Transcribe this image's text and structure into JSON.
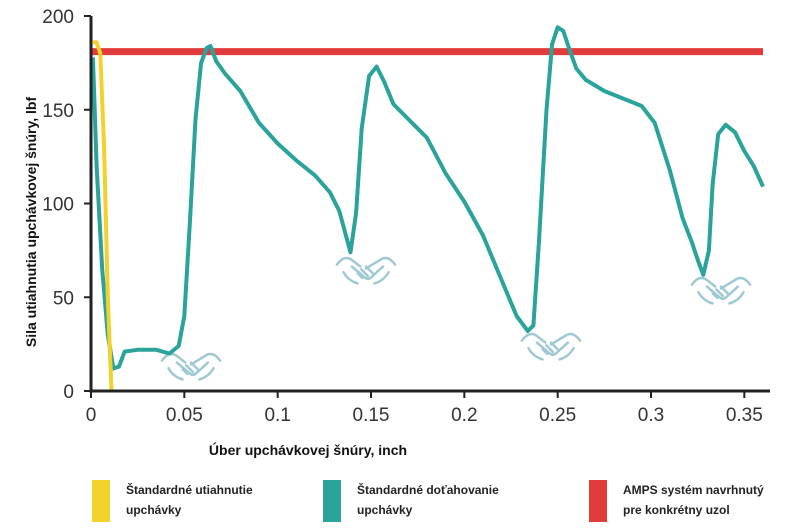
{
  "chart_data": {
    "type": "line",
    "title": "",
    "xlabel": "Úber upchávkovej šnúry, inch",
    "ylabel": "Sila utiahnutia upchávkovej šnúry, lbf",
    "xlim": [
      0,
      0.36
    ],
    "ylim": [
      0,
      200
    ],
    "x_ticks": [
      0,
      0.05,
      0.1,
      0.15,
      0.2,
      0.25,
      0.3,
      0.35
    ],
    "x_tick_labels": [
      "0",
      "0.05",
      "0.1",
      "0.15",
      "0.2",
      "0.25",
      "0.3",
      "0.35"
    ],
    "y_ticks": [
      0,
      50,
      100,
      150,
      200
    ],
    "y_tick_labels": [
      "0",
      "50",
      "100",
      "150",
      "200"
    ],
    "grid": false,
    "legend_position": "bottom",
    "series": [
      {
        "name": "AMPS systém navrhnutý pre konkrétny uzol",
        "color": "#e03c3c",
        "x": [
          0,
          0.36
        ],
        "y": [
          181,
          181
        ]
      },
      {
        "name": "Štandardné doťahovanie upchávky",
        "color": "#2aa39b",
        "x": [
          0.001,
          0.003,
          0.006,
          0.009,
          0.012,
          0.015,
          0.018,
          0.025,
          0.035,
          0.042,
          0.047,
          0.05,
          0.053,
          0.056,
          0.059,
          0.062,
          0.064,
          0.067,
          0.072,
          0.08,
          0.09,
          0.1,
          0.11,
          0.12,
          0.128,
          0.133,
          0.136,
          0.139,
          0.142,
          0.145,
          0.149,
          0.153,
          0.157,
          0.162,
          0.17,
          0.18,
          0.19,
          0.2,
          0.21,
          0.22,
          0.228,
          0.234,
          0.237,
          0.24,
          0.244,
          0.247,
          0.25,
          0.253,
          0.256,
          0.26,
          0.265,
          0.275,
          0.285,
          0.295,
          0.302,
          0.31,
          0.317,
          0.322,
          0.325,
          0.328,
          0.331,
          0.333,
          0.336,
          0.34,
          0.345,
          0.35,
          0.355,
          0.36
        ],
        "y": [
          178,
          120,
          65,
          30,
          12,
          13,
          21,
          22,
          22,
          20,
          24,
          40,
          90,
          145,
          175,
          183,
          184,
          176,
          169,
          160,
          143,
          132,
          123,
          115,
          106,
          96,
          85,
          74,
          95,
          140,
          168,
          173,
          165,
          153,
          145,
          135,
          116,
          101,
          83,
          59,
          40,
          32,
          35,
          80,
          150,
          185,
          194,
          192,
          183,
          172,
          166,
          160,
          156,
          152,
          143,
          118,
          92,
          79,
          70,
          62,
          75,
          110,
          137,
          142,
          138,
          128,
          120,
          109
        ]
      },
      {
        "name": "Štandardné utiahnutie upchávky",
        "color": "#f2d22a",
        "x": [
          0.001,
          0.003,
          0.005,
          0.007,
          0.009,
          0.011
        ],
        "y": [
          186,
          186,
          180,
          130,
          50,
          0
        ]
      }
    ]
  },
  "legend": [
    {
      "line1": "Štandardné utiahnutie",
      "line2": "upchávky",
      "color": "#f2d22a"
    },
    {
      "line1": "Štandardné doťahovanie",
      "line2": "upchávky",
      "color": "#2aa39b"
    },
    {
      "line1": "AMPS systém navrhnutý",
      "line2": "pre konkrétny uzol",
      "color": "#e03c3c"
    }
  ],
  "icons": [
    "handshake-icon",
    "handshake-icon",
    "handshake-icon",
    "handshake-icon",
    "handshake-icon"
  ]
}
